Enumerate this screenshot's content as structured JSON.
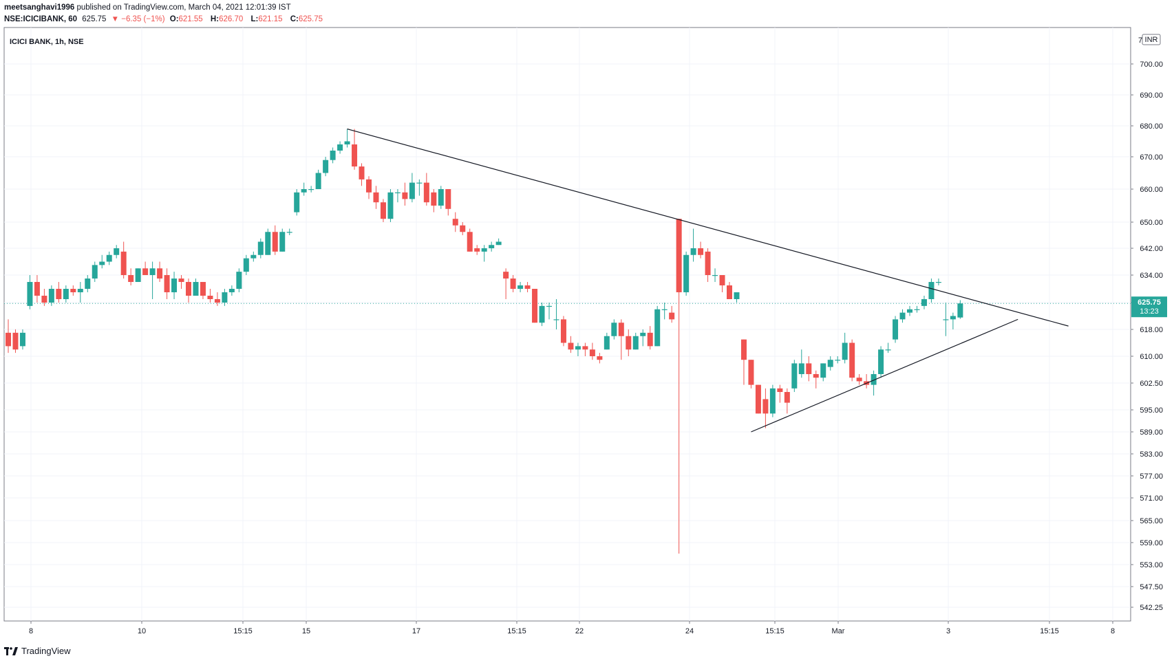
{
  "header": {
    "publisher": "meetsanghavi1996",
    "published_text": "published on TradingView.com, March 04, 2021 12:01:39 IST",
    "symbol": "NSE:ICICIBANK, 60",
    "last": "625.75",
    "change": "▼ −6.35 (−1%)",
    "o_label": "O:",
    "o_value": "621.55",
    "h_label": "H:",
    "h_value": "626.70",
    "l_label": "L:",
    "l_value": "621.15",
    "c_label": "C:",
    "c_value": "625.75"
  },
  "footer": {
    "brand": "TradingView"
  },
  "colors": {
    "up": "#26a69a",
    "down": "#ef5350",
    "grid": "#f0f3fa",
    "trend": "#131722",
    "last_line": "#26a69a"
  },
  "chart_data": {
    "type": "candlestick",
    "title": "ICICI BANK, 1h, NSE",
    "currency": "INR",
    "y_ticks": [
      "700.00",
      "690.00",
      "680.00",
      "670.00",
      "660.00",
      "650.00",
      "642.00",
      "634.00",
      "626.00",
      "618.00",
      "610.00",
      "602.50",
      "595.00",
      "589.00",
      "583.00",
      "577.00",
      "571.00",
      "565.00",
      "559.00",
      "553.00",
      "547.50",
      "542.25"
    ],
    "y_top_label": "7",
    "x_ticks": [
      "8",
      "10",
      "15:15",
      "15",
      "17",
      "15:15",
      "22",
      "24",
      "15:15",
      "Mar",
      "3",
      "15:15",
      "8"
    ],
    "last_price_label": "625.75",
    "countdown_label": "13:23",
    "candles": [
      {
        "o": 617,
        "h": 621,
        "l": 611,
        "c": 613
      },
      {
        "o": 617,
        "h": 618,
        "l": 611,
        "c": 612
      },
      {
        "o": 613,
        "h": 618,
        "l": 612,
        "c": 617
      },
      {
        "o": 625,
        "h": 634,
        "l": 624,
        "c": 632
      },
      {
        "o": 632,
        "h": 634,
        "l": 626,
        "c": 628
      },
      {
        "o": 628,
        "h": 630,
        "l": 625,
        "c": 626
      },
      {
        "o": 626,
        "h": 631,
        "l": 625,
        "c": 630
      },
      {
        "o": 630,
        "h": 632,
        "l": 626,
        "c": 627
      },
      {
        "o": 627,
        "h": 631,
        "l": 626,
        "c": 630
      },
      {
        "o": 630,
        "h": 631,
        "l": 628,
        "c": 629
      },
      {
        "o": 629,
        "h": 632,
        "l": 626,
        "c": 630
      },
      {
        "o": 630,
        "h": 634,
        "l": 629,
        "c": 633
      },
      {
        "o": 633,
        "h": 638,
        "l": 632,
        "c": 637
      },
      {
        "o": 637,
        "h": 640,
        "l": 636,
        "c": 638
      },
      {
        "o": 638,
        "h": 641,
        "l": 637,
        "c": 640
      },
      {
        "o": 640,
        "h": 643,
        "l": 639,
        "c": 642
      },
      {
        "o": 641,
        "h": 644,
        "l": 633,
        "c": 634
      },
      {
        "o": 634,
        "h": 636,
        "l": 631,
        "c": 632
      },
      {
        "o": 632,
        "h": 636,
        "l": 632,
        "c": 636
      },
      {
        "o": 636,
        "h": 638,
        "l": 634,
        "c": 634
      },
      {
        "o": 634,
        "h": 638,
        "l": 627,
        "c": 636
      },
      {
        "o": 636,
        "h": 638,
        "l": 632,
        "c": 633
      },
      {
        "o": 634,
        "h": 636,
        "l": 627,
        "c": 629
      },
      {
        "o": 629,
        "h": 635,
        "l": 627,
        "c": 633
      },
      {
        "o": 633,
        "h": 634,
        "l": 630,
        "c": 632
      },
      {
        "o": 632,
        "h": 633,
        "l": 626,
        "c": 628
      },
      {
        "o": 628,
        "h": 633,
        "l": 628,
        "c": 632
      },
      {
        "o": 632,
        "h": 632,
        "l": 627,
        "c": 628
      },
      {
        "o": 628,
        "h": 630,
        "l": 626,
        "c": 627
      },
      {
        "o": 627,
        "h": 629,
        "l": 625,
        "c": 626
      },
      {
        "o": 626,
        "h": 630,
        "l": 625,
        "c": 629
      },
      {
        "o": 629,
        "h": 631,
        "l": 628,
        "c": 630
      },
      {
        "o": 630,
        "h": 636,
        "l": 629,
        "c": 635
      },
      {
        "o": 635,
        "h": 640,
        "l": 634,
        "c": 639
      },
      {
        "o": 639,
        "h": 641,
        "l": 638,
        "c": 640
      },
      {
        "o": 640,
        "h": 645,
        "l": 639,
        "c": 644
      },
      {
        "o": 640,
        "h": 648,
        "l": 640,
        "c": 647
      },
      {
        "o": 647,
        "h": 649,
        "l": 640,
        "c": 641
      },
      {
        "o": 641,
        "h": 648,
        "l": 641,
        "c": 647
      },
      {
        "o": 647,
        "h": 648,
        "l": 646,
        "c": 647
      },
      {
        "o": 653,
        "h": 660,
        "l": 652,
        "c": 659
      },
      {
        "o": 659,
        "h": 662,
        "l": 658,
        "c": 660
      },
      {
        "o": 660,
        "h": 661,
        "l": 659,
        "c": 660
      },
      {
        "o": 660,
        "h": 666,
        "l": 660,
        "c": 665
      },
      {
        "o": 665,
        "h": 670,
        "l": 664,
        "c": 669
      },
      {
        "o": 669,
        "h": 673,
        "l": 668,
        "c": 672
      },
      {
        "o": 672,
        "h": 675,
        "l": 671,
        "c": 674
      },
      {
        "o": 674,
        "h": 679,
        "l": 673,
        "c": 675
      },
      {
        "o": 674,
        "h": 679,
        "l": 666,
        "c": 667
      },
      {
        "o": 667,
        "h": 668,
        "l": 661,
        "c": 663
      },
      {
        "o": 663,
        "h": 664,
        "l": 657,
        "c": 659
      },
      {
        "o": 659,
        "h": 661,
        "l": 654,
        "c": 656
      },
      {
        "o": 656,
        "h": 657,
        "l": 650,
        "c": 651
      },
      {
        "o": 651,
        "h": 660,
        "l": 650,
        "c": 659
      },
      {
        "o": 659,
        "h": 660,
        "l": 656,
        "c": 659
      },
      {
        "o": 659,
        "h": 662,
        "l": 655,
        "c": 657
      },
      {
        "o": 657,
        "h": 665,
        "l": 656,
        "c": 662
      },
      {
        "o": 662,
        "h": 663,
        "l": 658,
        "c": 662
      },
      {
        "o": 662,
        "h": 665,
        "l": 655,
        "c": 656
      },
      {
        "o": 659,
        "h": 660,
        "l": 653,
        "c": 655
      },
      {
        "o": 655,
        "h": 661,
        "l": 654,
        "c": 660
      },
      {
        "o": 660,
        "h": 660,
        "l": 652,
        "c": 654
      },
      {
        "o": 651,
        "h": 653,
        "l": 647,
        "c": 649
      },
      {
        "o": 649,
        "h": 650,
        "l": 646,
        "c": 647
      },
      {
        "o": 647,
        "h": 648,
        "l": 641,
        "c": 641
      },
      {
        "o": 642,
        "h": 643,
        "l": 640,
        "c": 641
      },
      {
        "o": 641,
        "h": 643,
        "l": 638,
        "c": 642
      },
      {
        "o": 642,
        "h": 644,
        "l": 641,
        "c": 643
      },
      {
        "o": 643,
        "h": 645,
        "l": 643,
        "c": 644
      },
      {
        "o": 635,
        "h": 636,
        "l": 627,
        "c": 633
      },
      {
        "o": 633,
        "h": 634,
        "l": 629,
        "c": 630
      },
      {
        "o": 630,
        "h": 632,
        "l": 629,
        "c": 631
      },
      {
        "o": 631,
        "h": 632,
        "l": 629,
        "c": 630
      },
      {
        "o": 630,
        "h": 630,
        "l": 620,
        "c": 620
      },
      {
        "o": 620,
        "h": 626,
        "l": 619,
        "c": 625
      },
      {
        "o": 625,
        "h": 626,
        "l": 621,
        "c": 625
      },
      {
        "o": 621,
        "h": 627,
        "l": 618,
        "c": 621
      },
      {
        "o": 621,
        "h": 622,
        "l": 613,
        "c": 614
      },
      {
        "o": 614,
        "h": 616,
        "l": 611,
        "c": 612
      },
      {
        "o": 612,
        "h": 614,
        "l": 610,
        "c": 613
      },
      {
        "o": 613,
        "h": 614,
        "l": 610,
        "c": 612
      },
      {
        "o": 612,
        "h": 614,
        "l": 609,
        "c": 610
      },
      {
        "o": 610,
        "h": 611,
        "l": 608,
        "c": 609
      },
      {
        "o": 612,
        "h": 617,
        "l": 612,
        "c": 616
      },
      {
        "o": 616,
        "h": 621,
        "l": 615,
        "c": 620
      },
      {
        "o": 620,
        "h": 621,
        "l": 609,
        "c": 616
      },
      {
        "o": 616,
        "h": 618,
        "l": 610,
        "c": 612
      },
      {
        "o": 612,
        "h": 617,
        "l": 612,
        "c": 616
      },
      {
        "o": 616,
        "h": 618,
        "l": 613,
        "c": 617
      },
      {
        "o": 617,
        "h": 619,
        "l": 612,
        "c": 613
      },
      {
        "o": 613,
        "h": 625,
        "l": 613,
        "c": 624
      },
      {
        "o": 624,
        "h": 626,
        "l": 621,
        "c": 624
      },
      {
        "o": 623,
        "h": 625,
        "l": 620,
        "c": 621
      },
      {
        "o": 651,
        "h": 651,
        "l": 556,
        "c": 629
      },
      {
        "o": 629,
        "h": 641,
        "l": 628,
        "c": 640
      },
      {
        "o": 640,
        "h": 648,
        "l": 638,
        "c": 642
      },
      {
        "o": 642,
        "h": 644,
        "l": 639,
        "c": 640
      },
      {
        "o": 641,
        "h": 642,
        "l": 632,
        "c": 634
      },
      {
        "o": 634,
        "h": 636,
        "l": 632,
        "c": 634
      },
      {
        "o": 634,
        "h": 634,
        "l": 629,
        "c": 631
      },
      {
        "o": 631,
        "h": 632,
        "l": 627,
        "c": 627
      },
      {
        "o": 627,
        "h": 629,
        "l": 626,
        "c": 629
      },
      {
        "o": 615,
        "h": 615,
        "l": 602,
        "c": 609
      },
      {
        "o": 609,
        "h": 609,
        "l": 601,
        "c": 602
      },
      {
        "o": 602,
        "h": 602,
        "l": 594,
        "c": 594
      },
      {
        "o": 598,
        "h": 601,
        "l": 590,
        "c": 594
      },
      {
        "o": 594,
        "h": 602,
        "l": 593,
        "c": 601
      },
      {
        "o": 601,
        "h": 602,
        "l": 597,
        "c": 600
      },
      {
        "o": 600,
        "h": 601,
        "l": 594,
        "c": 597
      },
      {
        "o": 601,
        "h": 609,
        "l": 600,
        "c": 608
      },
      {
        "o": 605,
        "h": 612,
        "l": 604,
        "c": 608
      },
      {
        "o": 608,
        "h": 610,
        "l": 603,
        "c": 605
      },
      {
        "o": 605,
        "h": 606,
        "l": 601,
        "c": 604
      },
      {
        "o": 604,
        "h": 608,
        "l": 603,
        "c": 608
      },
      {
        "o": 607,
        "h": 610,
        "l": 606,
        "c": 609
      },
      {
        "o": 609,
        "h": 610,
        "l": 608,
        "c": 609
      },
      {
        "o": 609,
        "h": 617,
        "l": 608,
        "c": 614
      },
      {
        "o": 614,
        "h": 615,
        "l": 603,
        "c": 604
      },
      {
        "o": 604,
        "h": 605,
        "l": 602,
        "c": 603
      },
      {
        "o": 603,
        "h": 605,
        "l": 601,
        "c": 602
      },
      {
        "o": 602,
        "h": 606,
        "l": 599,
        "c": 605
      },
      {
        "o": 605,
        "h": 613,
        "l": 604,
        "c": 612
      },
      {
        "o": 612,
        "h": 614,
        "l": 611,
        "c": 612
      },
      {
        "o": 615,
        "h": 622,
        "l": 614,
        "c": 621
      },
      {
        "o": 621,
        "h": 624,
        "l": 620,
        "c": 623
      },
      {
        "o": 623,
        "h": 625,
        "l": 622,
        "c": 624
      },
      {
        "o": 624,
        "h": 625,
        "l": 623,
        "c": 624
      },
      {
        "o": 625,
        "h": 628,
        "l": 624,
        "c": 627
      },
      {
        "o": 627,
        "h": 633,
        "l": 626,
        "c": 632
      },
      {
        "o": 632,
        "h": 633,
        "l": 631,
        "c": 632
      },
      {
        "o": 621,
        "h": 626,
        "l": 616,
        "c": 621
      },
      {
        "o": 621,
        "h": 623,
        "l": 618,
        "c": 622
      },
      {
        "o": 621.55,
        "h": 626.7,
        "l": 621.15,
        "c": 625.75
      }
    ],
    "trendlines": [
      {
        "from": {
          "bar": 47,
          "price": 679
        },
        "to": {
          "bar": 147,
          "price": 619
        }
      },
      {
        "from": {
          "bar": 103,
          "price": 589
        },
        "to": {
          "bar": 140,
          "price": 621
        }
      }
    ]
  }
}
